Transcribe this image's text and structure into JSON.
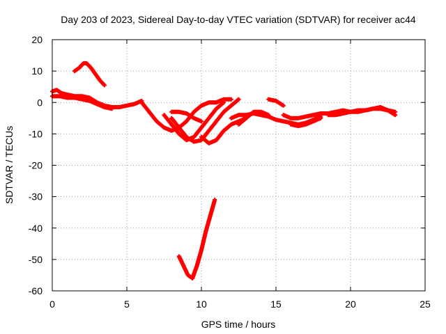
{
  "chart_data": {
    "type": "scatter",
    "title": "Day 203 of 2023, Sidereal Day-to-day VTEC variation (SDTVAR) for receiver ac44",
    "xlabel": "GPS time / hours",
    "ylabel": "SDTVAR / TECUs",
    "xlim": [
      0,
      25
    ],
    "ylim": [
      -60,
      20
    ],
    "xticks": [
      0,
      5,
      10,
      15,
      20,
      25
    ],
    "yticks": [
      -60,
      -50,
      -40,
      -30,
      -20,
      -10,
      0,
      10,
      20
    ],
    "xtick_labels": [
      "0",
      "5",
      "10",
      "15",
      "20",
      "25"
    ],
    "ytick_labels": [
      "-60",
      "-50",
      "-40",
      "-30",
      "-20",
      "-10",
      "0",
      "10",
      "20"
    ],
    "grid": true,
    "marker_color": "#ff0000",
    "series": [
      {
        "name": "arc-high",
        "x": [
          1.5,
          1.8,
          2.1,
          2.3,
          2.6,
          2.9,
          3.2,
          3.5
        ],
        "y": [
          10,
          11,
          12.5,
          12.5,
          11,
          9,
          7,
          5.5
        ]
      },
      {
        "name": "arc-main",
        "x": [
          0,
          0.3,
          0.6,
          1.0,
          1.5,
          2.0,
          2.5,
          3.0,
          3.5,
          4.0,
          4.5,
          5.0,
          5.5,
          6.0
        ],
        "y": [
          3.5,
          4,
          3,
          2.5,
          2,
          2,
          1.5,
          0,
          -1,
          -1.5,
          -1.5,
          -1,
          -0.5,
          0.5
        ]
      },
      {
        "name": "arc-lower",
        "x": [
          0,
          0.5,
          1.0,
          1.5,
          2.0,
          2.5,
          3.0,
          3.5,
          4.0
        ],
        "y": [
          2,
          2,
          1.5,
          1.5,
          1,
          0.5,
          -0.5,
          -1.5,
          -2
        ]
      },
      {
        "name": "arc-a",
        "x": [
          6.0,
          6.5,
          7.0,
          7.5,
          8.0,
          8.5,
          9.0,
          9.5,
          10.0,
          10.5,
          11.0,
          11.5,
          12.0
        ],
        "y": [
          0,
          -3,
          -6,
          -8,
          -9,
          -8,
          -6,
          -3,
          -1,
          0,
          0,
          1,
          1
        ]
      },
      {
        "name": "arc-b",
        "x": [
          7.5,
          8.0,
          8.5,
          9.0,
          9.5,
          10.0,
          10.5,
          11.0,
          11.5
        ],
        "y": [
          -4,
          -7,
          -10,
          -12,
          -11,
          -8,
          -5,
          -2,
          0
        ]
      },
      {
        "name": "arc-c",
        "x": [
          8.0,
          8.5,
          9.0,
          9.5,
          10.0,
          10.5,
          11.0,
          11.5,
          12.0,
          12.5
        ],
        "y": [
          -5,
          -8,
          -11,
          -12.5,
          -12,
          -9,
          -6,
          -3,
          -1,
          1
        ]
      },
      {
        "name": "arc-d",
        "x": [
          10.0,
          10.5,
          11.0,
          11.5,
          12.0,
          12.5,
          13.0
        ],
        "y": [
          -11,
          -13,
          -12,
          -9,
          -7,
          -6,
          -5
        ]
      },
      {
        "name": "arc-e",
        "x": [
          8.0,
          8.5,
          9.0,
          9.5,
          10.0
        ],
        "y": [
          -3,
          -3,
          -3.5,
          -5,
          -6
        ]
      },
      {
        "name": "arc-f",
        "x": [
          12.0,
          12.5,
          13.0,
          13.5,
          14.0,
          14.5,
          15.0,
          15.5,
          16.0,
          16.5,
          17.0,
          17.5,
          18.0
        ],
        "y": [
          -5,
          -4,
          -4,
          -3.5,
          -4,
          -4.5,
          -5.5,
          -6,
          -6.5,
          -7,
          -6.5,
          -5.5,
          -4.5
        ]
      },
      {
        "name": "arc-g",
        "x": [
          12.5,
          13.0,
          13.5,
          14.0,
          14.5
        ],
        "y": [
          -7,
          -5,
          -3,
          -3,
          -4
        ]
      },
      {
        "name": "arc-h",
        "x": [
          14.5,
          15.0,
          15.5
        ],
        "y": [
          1,
          0.5,
          -1
        ]
      },
      {
        "name": "arc-i",
        "x": [
          15.5,
          16.0,
          16.5,
          17.0,
          17.5,
          18.0,
          18.5,
          19.0,
          19.5,
          20.0,
          20.5,
          21.0,
          21.5,
          22.0,
          22.5,
          23.0
        ],
        "y": [
          -4,
          -5,
          -5,
          -4.5,
          -4,
          -3.5,
          -3.5,
          -3,
          -2.5,
          -3,
          -2.5,
          -2.5,
          -2,
          -2,
          -2.5,
          -3
        ]
      },
      {
        "name": "arc-j",
        "x": [
          16.0,
          16.5,
          17.0,
          17.5,
          18.0
        ],
        "y": [
          -7,
          -7.5,
          -7,
          -6,
          -5
        ]
      },
      {
        "name": "arc-k",
        "x": [
          18.5,
          19.0,
          19.5,
          20.0,
          20.5,
          21.0,
          21.5,
          22.0,
          22.5,
          23.0
        ],
        "y": [
          -4,
          -4,
          -3.5,
          -3,
          -3,
          -2.5,
          -2,
          -1.5,
          -2.5,
          -4
        ]
      },
      {
        "name": "arc-low",
        "x": [
          8.5,
          8.8,
          9.1,
          9.4,
          9.7,
          10.0,
          10.3,
          10.6,
          10.9
        ],
        "y": [
          -49,
          -52,
          -55,
          -56,
          -52,
          -47,
          -41,
          -36,
          -31
        ]
      }
    ]
  }
}
